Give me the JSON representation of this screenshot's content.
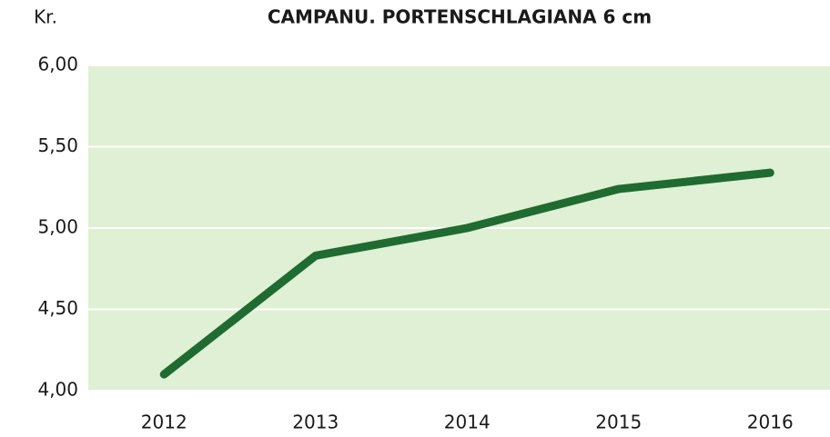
{
  "chart_data": {
    "type": "line",
    "title": "CAMPANU. PORTENSCHLAGIANA 6 cm",
    "y_label": "Kr.",
    "categories": [
      "2012",
      "2013",
      "2014",
      "2015",
      "2016"
    ],
    "series": [
      {
        "name": null,
        "color": "#1f6b32",
        "values": [
          4.1,
          4.83,
          5.0,
          5.24,
          5.34
        ]
      }
    ],
    "ylim": [
      4,
      6
    ],
    "yticks": [
      {
        "value": 4,
        "label": "4,00"
      },
      {
        "value": 4.5,
        "label": "4,50"
      },
      {
        "value": 5,
        "label": "5,00"
      },
      {
        "value": 5.5,
        "label": "5,50"
      },
      {
        "value": 6,
        "label": "6,00"
      }
    ],
    "grid": true,
    "plot_background": "#dff0d4",
    "grid_color": "#ffffff"
  }
}
